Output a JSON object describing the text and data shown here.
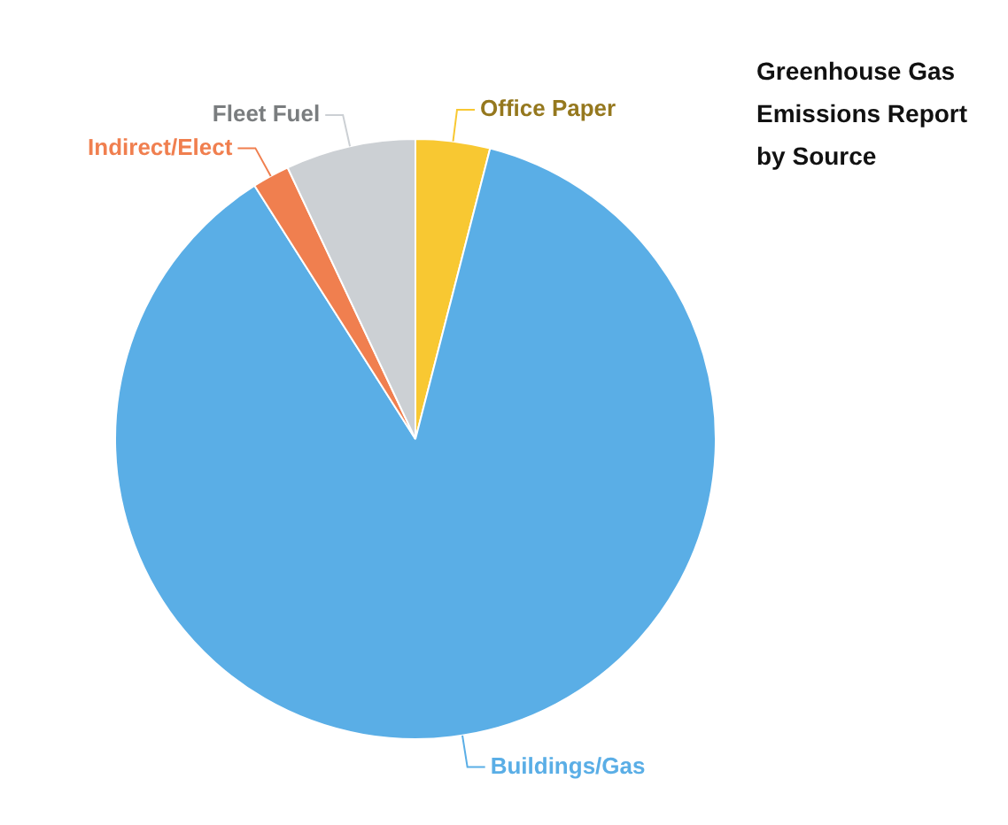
{
  "chart_data": {
    "type": "pie",
    "title": "Greenhouse Gas Emissions Report by Source",
    "categories": [
      "Office Paper",
      "Buildings/Gas",
      "Indirect/Elect",
      "Fleet Fuel"
    ],
    "values": [
      4,
      87,
      2,
      7
    ],
    "colors": [
      "#f8c832",
      "#5aaee6",
      "#f07f4f",
      "#ccd0d4"
    ],
    "legend": false
  }
}
